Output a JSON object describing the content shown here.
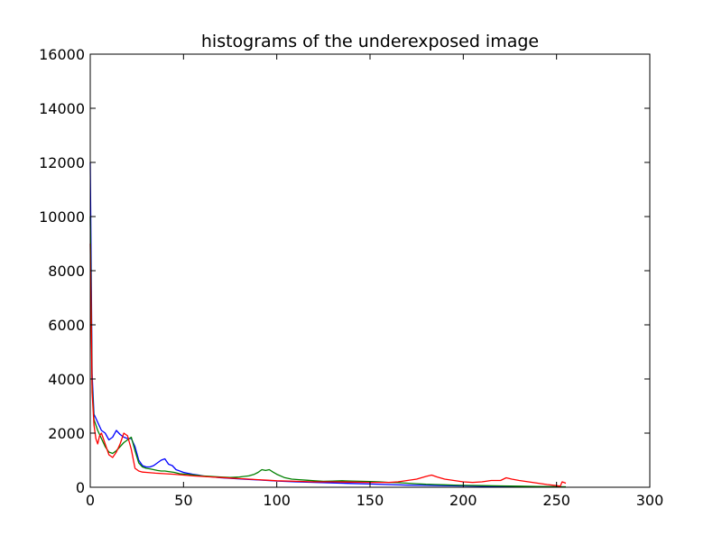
{
  "chart_data": {
    "type": "line",
    "title": "histograms of the underexposed image",
    "xlabel": "",
    "ylabel": "",
    "xlim": [
      0,
      300
    ],
    "ylim": [
      0,
      16000
    ],
    "xticks": [
      0,
      50,
      100,
      150,
      200,
      250,
      300
    ],
    "yticks": [
      0,
      2000,
      4000,
      6000,
      8000,
      10000,
      12000,
      14000,
      16000
    ],
    "grid": false,
    "legend": "none",
    "series": [
      {
        "color": "#0000ff",
        "points": [
          [
            0,
            12000
          ],
          [
            1,
            4200
          ],
          [
            2,
            2700
          ],
          [
            4,
            2400
          ],
          [
            6,
            2100
          ],
          [
            8,
            2000
          ],
          [
            10,
            1750
          ],
          [
            12,
            1850
          ],
          [
            14,
            2100
          ],
          [
            16,
            1950
          ],
          [
            18,
            1850
          ],
          [
            20,
            1800
          ],
          [
            22,
            1800
          ],
          [
            24,
            1500
          ],
          [
            26,
            1000
          ],
          [
            28,
            800
          ],
          [
            30,
            750
          ],
          [
            32,
            750
          ],
          [
            34,
            800
          ],
          [
            36,
            900
          ],
          [
            38,
            1000
          ],
          [
            40,
            1050
          ],
          [
            42,
            850
          ],
          [
            44,
            800
          ],
          [
            46,
            650
          ],
          [
            48,
            600
          ],
          [
            50,
            550
          ],
          [
            52,
            520
          ],
          [
            55,
            480
          ],
          [
            58,
            450
          ],
          [
            62,
            400
          ],
          [
            66,
            380
          ],
          [
            70,
            350
          ],
          [
            75,
            330
          ],
          [
            80,
            310
          ],
          [
            85,
            290
          ],
          [
            90,
            270
          ],
          [
            95,
            250
          ],
          [
            100,
            230
          ],
          [
            110,
            200
          ],
          [
            120,
            180
          ],
          [
            130,
            160
          ],
          [
            140,
            140
          ],
          [
            150,
            120
          ],
          [
            160,
            100
          ],
          [
            170,
            80
          ],
          [
            180,
            70
          ],
          [
            190,
            60
          ],
          [
            200,
            50
          ],
          [
            210,
            40
          ],
          [
            220,
            30
          ],
          [
            230,
            25
          ],
          [
            240,
            20
          ],
          [
            250,
            15
          ],
          [
            255,
            10
          ]
        ]
      },
      {
        "color": "#008000",
        "points": [
          [
            0,
            10000
          ],
          [
            1,
            3800
          ],
          [
            2,
            2500
          ],
          [
            4,
            2100
          ],
          [
            6,
            1800
          ],
          [
            8,
            1500
          ],
          [
            10,
            1300
          ],
          [
            12,
            1250
          ],
          [
            14,
            1350
          ],
          [
            16,
            1500
          ],
          [
            18,
            1650
          ],
          [
            20,
            1750
          ],
          [
            22,
            1850
          ],
          [
            24,
            1350
          ],
          [
            26,
            900
          ],
          [
            28,
            750
          ],
          [
            30,
            700
          ],
          [
            32,
            680
          ],
          [
            34,
            650
          ],
          [
            36,
            620
          ],
          [
            38,
            600
          ],
          [
            40,
            600
          ],
          [
            42,
            580
          ],
          [
            45,
            550
          ],
          [
            48,
            500
          ],
          [
            52,
            480
          ],
          [
            56,
            450
          ],
          [
            60,
            420
          ],
          [
            65,
            400
          ],
          [
            70,
            380
          ],
          [
            75,
            360
          ],
          [
            80,
            380
          ],
          [
            85,
            420
          ],
          [
            88,
            480
          ],
          [
            90,
            550
          ],
          [
            92,
            650
          ],
          [
            94,
            620
          ],
          [
            96,
            650
          ],
          [
            98,
            560
          ],
          [
            100,
            480
          ],
          [
            104,
            360
          ],
          [
            108,
            300
          ],
          [
            112,
            280
          ],
          [
            116,
            260
          ],
          [
            120,
            240
          ],
          [
            125,
            220
          ],
          [
            130,
            230
          ],
          [
            135,
            240
          ],
          [
            140,
            230
          ],
          [
            145,
            220
          ],
          [
            150,
            210
          ],
          [
            155,
            200
          ],
          [
            160,
            180
          ],
          [
            165,
            170
          ],
          [
            170,
            150
          ],
          [
            175,
            130
          ],
          [
            180,
            110
          ],
          [
            185,
            100
          ],
          [
            190,
            90
          ],
          [
            195,
            80
          ],
          [
            200,
            70
          ],
          [
            210,
            60
          ],
          [
            220,
            50
          ],
          [
            230,
            40
          ],
          [
            240,
            30
          ],
          [
            250,
            20
          ],
          [
            255,
            15
          ]
        ]
      },
      {
        "color": "#ff0000",
        "points": [
          [
            0,
            9000
          ],
          [
            1,
            3500
          ],
          [
            2,
            2300
          ],
          [
            3,
            1800
          ],
          [
            4,
            1600
          ],
          [
            5,
            1900
          ],
          [
            6,
            2000
          ],
          [
            8,
            1600
          ],
          [
            10,
            1200
          ],
          [
            12,
            1100
          ],
          [
            14,
            1300
          ],
          [
            16,
            1600
          ],
          [
            18,
            2000
          ],
          [
            20,
            1900
          ],
          [
            22,
            1400
          ],
          [
            24,
            700
          ],
          [
            26,
            600
          ],
          [
            28,
            560
          ],
          [
            30,
            550
          ],
          [
            35,
            520
          ],
          [
            40,
            500
          ],
          [
            45,
            480
          ],
          [
            50,
            450
          ],
          [
            55,
            420
          ],
          [
            60,
            400
          ],
          [
            65,
            380
          ],
          [
            70,
            360
          ],
          [
            75,
            340
          ],
          [
            80,
            320
          ],
          [
            85,
            300
          ],
          [
            90,
            280
          ],
          [
            95,
            260
          ],
          [
            100,
            240
          ],
          [
            110,
            220
          ],
          [
            120,
            200
          ],
          [
            130,
            200
          ],
          [
            140,
            190
          ],
          [
            150,
            180
          ],
          [
            160,
            180
          ],
          [
            165,
            200
          ],
          [
            170,
            250
          ],
          [
            175,
            300
          ],
          [
            180,
            400
          ],
          [
            183,
            450
          ],
          [
            186,
            380
          ],
          [
            190,
            300
          ],
          [
            195,
            250
          ],
          [
            200,
            200
          ],
          [
            205,
            180
          ],
          [
            210,
            200
          ],
          [
            215,
            250
          ],
          [
            220,
            250
          ],
          [
            223,
            350
          ],
          [
            226,
            300
          ],
          [
            230,
            250
          ],
          [
            235,
            200
          ],
          [
            240,
            150
          ],
          [
            245,
            100
          ],
          [
            250,
            60
          ],
          [
            252,
            40
          ],
          [
            253,
            200
          ],
          [
            255,
            150
          ]
        ]
      }
    ]
  }
}
